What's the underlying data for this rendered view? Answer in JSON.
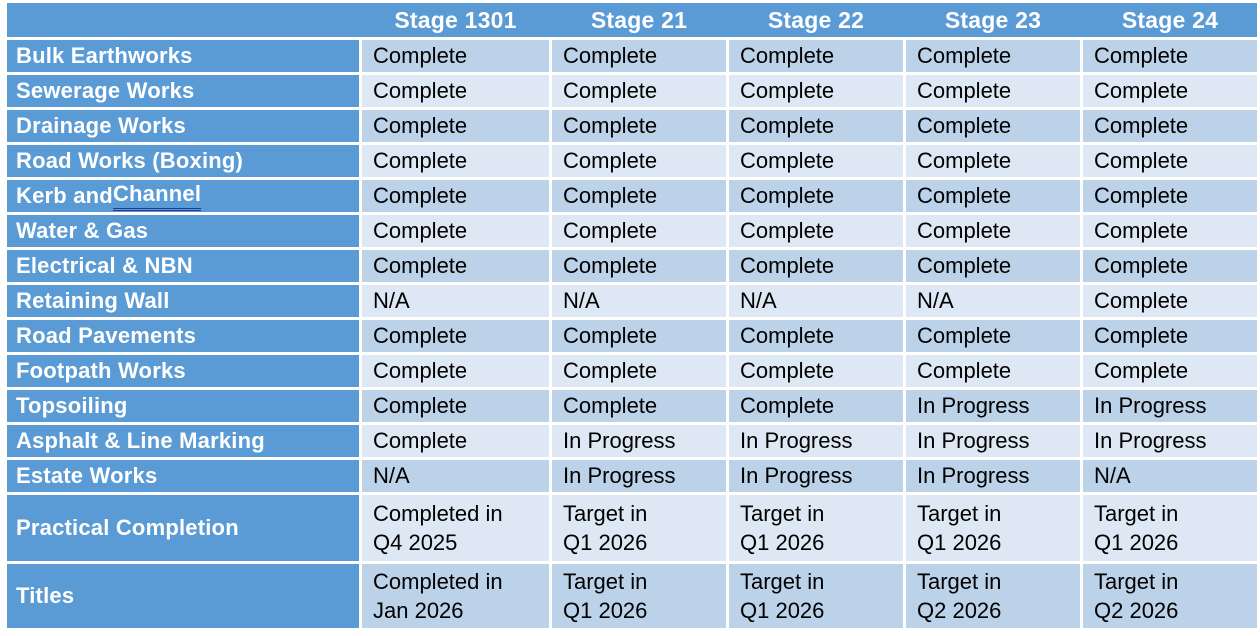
{
  "header": {
    "cells": [
      "",
      "Stage 1301",
      "Stage 21",
      "Stage 22",
      "Stage 23",
      "Stage 24"
    ]
  },
  "rows": [
    {
      "label": "Bulk Earthworks",
      "values": [
        "Complete",
        "Complete",
        "Complete",
        "Complete",
        "Complete"
      ]
    },
    {
      "label": "Sewerage Works",
      "values": [
        "Complete",
        "Complete",
        "Complete",
        "Complete",
        "Complete"
      ]
    },
    {
      "label": "Drainage Works",
      "values": [
        "Complete",
        "Complete",
        "Complete",
        "Complete",
        "Complete"
      ]
    },
    {
      "label": "Road Works (Boxing)",
      "values": [
        "Complete",
        "Complete",
        "Complete",
        "Complete",
        "Complete"
      ]
    },
    {
      "label_prefix": "Kerb and ",
      "label_underlined": "Channel",
      "values": [
        "Complete",
        "Complete",
        "Complete",
        "Complete",
        "Complete"
      ]
    },
    {
      "label": "Water & Gas",
      "values": [
        "Complete",
        "Complete",
        "Complete",
        "Complete",
        "Complete"
      ]
    },
    {
      "label": "Electrical & NBN",
      "values": [
        "Complete",
        "Complete",
        "Complete",
        "Complete",
        "Complete"
      ]
    },
    {
      "label": "Retaining Wall",
      "values": [
        "N/A",
        "N/A",
        "N/A",
        "N/A",
        "Complete"
      ]
    },
    {
      "label": "Road Pavements",
      "values": [
        "Complete",
        "Complete",
        "Complete",
        "Complete",
        "Complete"
      ]
    },
    {
      "label": "Footpath Works",
      "values": [
        "Complete",
        "Complete",
        "Complete",
        "Complete",
        "Complete"
      ]
    },
    {
      "label": "Topsoiling",
      "values": [
        "Complete",
        "Complete",
        "Complete",
        "In Progress",
        "In Progress"
      ]
    },
    {
      "label": "Asphalt & Line Marking",
      "values": [
        "Complete",
        "In Progress",
        "In Progress",
        "In Progress",
        "In Progress"
      ]
    },
    {
      "label": "Estate Works",
      "values": [
        "N/A",
        "In Progress",
        "In Progress",
        "In Progress",
        "N/A"
      ]
    },
    {
      "label": "Practical Completion",
      "tall": true,
      "values": [
        "Completed in\nQ4 2025",
        "Target in\nQ1 2026",
        "Target in\nQ1 2026",
        "Target in\nQ1 2026",
        "Target in\nQ1 2026"
      ]
    },
    {
      "label": "Titles",
      "tall": true,
      "values": [
        "Completed in\nJan 2026",
        "Target in\nQ1 2026",
        "Target in\nQ1 2026",
        "Target in\nQ2 2026",
        "Target in\nQ2 2026"
      ]
    }
  ],
  "colors": {
    "header_blue": "#5b9bd5",
    "label_blue": "#5b9bd5",
    "band_dark": "#bcd2e8",
    "band_light": "#dde8f4",
    "grid_gap": "#ffffff",
    "label_text": "#ffffff",
    "data_text": "#000000",
    "channel_underline": "#1f3a93"
  }
}
